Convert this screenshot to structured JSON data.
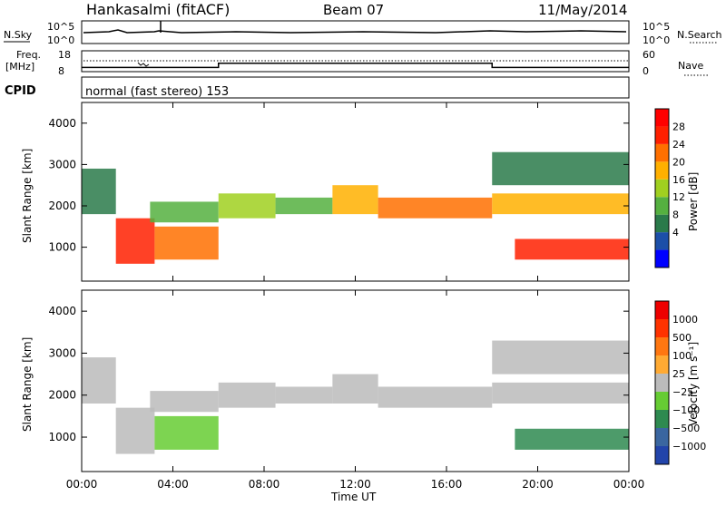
{
  "header": {
    "station": "Hankasalmi (fitACF)",
    "beam": "Beam 07",
    "date": "11/May/2014"
  },
  "noise_panel": {
    "left_label": "N.Sky",
    "right_label": "N.Search",
    "left_ticks": [
      "10^5",
      "10^0"
    ],
    "right_ticks": [
      "10^5",
      "10^0"
    ]
  },
  "freq_panel": {
    "left_label_line1": "Freq.",
    "left_label_line2": "[MHz]",
    "left_ticks": [
      "18",
      "8"
    ],
    "right_label": "Nave",
    "right_ticks": [
      "60",
      "0"
    ]
  },
  "cpid": {
    "label": "CPID",
    "text": "normal (fast stereo) 153"
  },
  "xaxis": {
    "title": "Time UT",
    "ticks": [
      "00:00",
      "04:00",
      "08:00",
      "12:00",
      "16:00",
      "20:00",
      "00:00"
    ]
  },
  "power_panel": {
    "ylabel": "Slant Range [km]",
    "colorbar_label": "Power [dB]",
    "colorbar_ticks": [
      "28",
      "24",
      "20",
      "16",
      "12",
      "8",
      "4"
    ],
    "colors": [
      "#0000ff",
      "#1c4fa8",
      "#2a7a4a",
      "#55b040",
      "#a0d020",
      "#ffb000",
      "#ff7000",
      "#ff2000",
      "#ff0000"
    ]
  },
  "velocity_panel": {
    "ylabel": "Slant Range [km]",
    "colorbar_label": "Velocity [m s⁻¹]",
    "colorbar_ticks": [
      "1000",
      "500",
      "100",
      "25",
      "−25",
      "−100",
      "−500",
      "−1000"
    ],
    "colors": [
      "#2244aa",
      "#3a66a0",
      "#2e8a50",
      "#66cc33",
      "#bbbbbb",
      "#ffaa33",
      "#ff7711",
      "#ff3300",
      "#ee0000"
    ]
  },
  "chart_data": {
    "type": "heatmap",
    "x_unit": "UT hours",
    "x_range": [
      0,
      24
    ],
    "y_range_km": [
      180,
      4500
    ],
    "y_ticks": [
      1000,
      2000,
      3000,
      4000
    ],
    "frequency_segments_mhz": [
      {
        "start": 0,
        "end": 6,
        "freq": 10
      },
      {
        "start": 6,
        "end": 18,
        "freq": 12
      },
      {
        "start": 18,
        "end": 24,
        "freq": 10
      }
    ],
    "power_bands": [
      {
        "t": [
          0.0,
          1.5
        ],
        "range": [
          1800,
          2900
        ],
        "db": 8
      },
      {
        "t": [
          1.5,
          3.2
        ],
        "range": [
          600,
          1700
        ],
        "db": 27
      },
      {
        "t": [
          3.2,
          6.0
        ],
        "range": [
          700,
          1500
        ],
        "db": 22
      },
      {
        "t": [
          3.0,
          6.0
        ],
        "range": [
          1600,
          2100
        ],
        "db": 10
      },
      {
        "t": [
          6.0,
          8.5
        ],
        "range": [
          1700,
          2300
        ],
        "db": 14
      },
      {
        "t": [
          8.5,
          11.0
        ],
        "range": [
          1800,
          2200
        ],
        "db": 12
      },
      {
        "t": [
          11.0,
          13.0
        ],
        "range": [
          1800,
          2500
        ],
        "db": 18
      },
      {
        "t": [
          13.0,
          18.0
        ],
        "range": [
          1700,
          2200
        ],
        "db": 22
      },
      {
        "t": [
          18.0,
          24.0
        ],
        "range": [
          1800,
          2300
        ],
        "db": 18
      },
      {
        "t": [
          19.0,
          24.0
        ],
        "range": [
          700,
          1200
        ],
        "db": 27
      },
      {
        "t": [
          18.0,
          24.0
        ],
        "range": [
          2500,
          3300
        ],
        "db": 6
      }
    ]
  }
}
